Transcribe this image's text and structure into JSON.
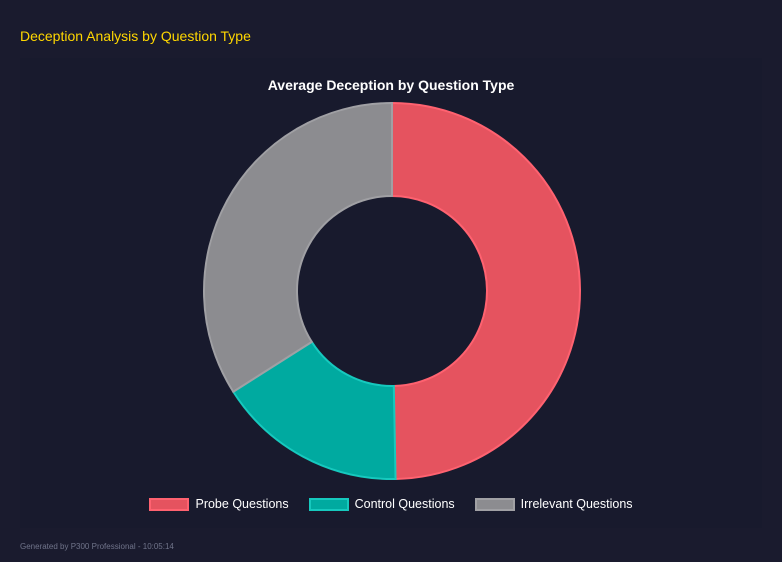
{
  "header": {
    "title": "Deception Analysis by Question Type"
  },
  "chart_data": {
    "type": "pie",
    "variant": "doughnut",
    "title": "Average Deception by Question Type",
    "categories": [
      "Probe Questions",
      "Control Questions",
      "Irrelevant Questions"
    ],
    "values": [
      49.7,
      16.3,
      34.0
    ],
    "colors": [
      "#e5535f",
      "#00aaa0",
      "#8c8c90"
    ],
    "border_colors": [
      "#ff6270",
      "#16c9be",
      "#a0a0a4"
    ],
    "legend_position": "bottom"
  },
  "footer": {
    "text": "Generated by P300 Professional - 10:05:14"
  }
}
